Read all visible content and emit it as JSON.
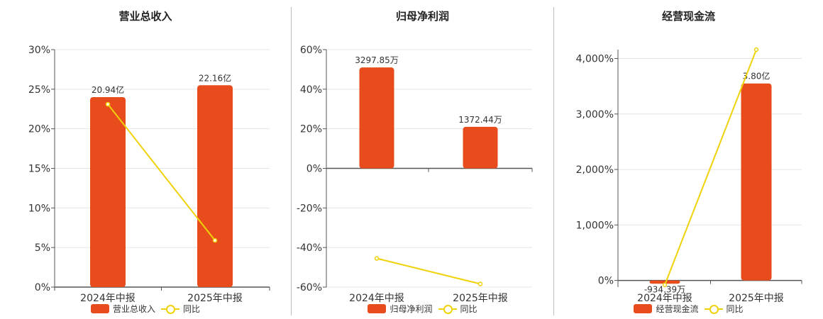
{
  "charts": [
    {
      "title": "营业总收入",
      "legend": {
        "bar": "营业总收入",
        "line": "同比"
      }
    },
    {
      "title": "归母净利润",
      "legend": {
        "bar": "归母净利润",
        "line": "同比"
      }
    },
    {
      "title": "经营现金流",
      "legend": {
        "bar": "经营现金流",
        "line": "同比"
      }
    }
  ],
  "colors": {
    "bar": "#e84c1c",
    "line": "#f0d20a",
    "grid": "#e4e4e4",
    "axis": "#555555",
    "text": "#333333"
  },
  "chart_data": [
    {
      "type": "bar",
      "title": "营业总收入",
      "categories": [
        "2024年中报",
        "2025年中报"
      ],
      "series": [
        {
          "name": "营业总收入",
          "type": "bar",
          "values": [
            24.0,
            25.5
          ],
          "labels": [
            "20.94亿",
            "22.16亿"
          ]
        },
        {
          "name": "同比",
          "type": "line",
          "values": [
            23.1,
            5.9
          ]
        }
      ],
      "yticks": [
        "0%",
        "5%",
        "10%",
        "15%",
        "20%",
        "25%",
        "30%"
      ],
      "ylim": [
        0,
        30
      ],
      "grid": true,
      "legend_position": "bottom"
    },
    {
      "type": "bar",
      "title": "归母净利润",
      "categories": [
        "2024年中报",
        "2025年中报"
      ],
      "series": [
        {
          "name": "归母净利润",
          "type": "bar",
          "values": [
            51.0,
            21.0
          ],
          "labels": [
            "3297.85万",
            "1372.44万"
          ]
        },
        {
          "name": "同比",
          "type": "line",
          "values": [
            -45.5,
            -58.4
          ]
        }
      ],
      "yticks": [
        "-60%",
        "-40%",
        "-20%",
        "0%",
        "20%",
        "40%",
        "60%"
      ],
      "ylim": [
        -60,
        60
      ],
      "grid": true,
      "legend_position": "bottom"
    },
    {
      "type": "bar",
      "title": "经营现金流",
      "categories": [
        "2024年中报",
        "2025年中报"
      ],
      "series": [
        {
          "name": "经营现金流",
          "type": "bar",
          "values": [
            -60,
            3550
          ],
          "labels": [
            "-934.39万",
            "3.80亿"
          ]
        },
        {
          "name": "同比",
          "type": "line",
          "values": [
            -80,
            4160
          ]
        }
      ],
      "yticks": [
        "0%",
        "1,000%",
        "2,000%",
        "3,000%",
        "4,000%"
      ],
      "ylim": [
        -120,
        4160
      ],
      "grid": true,
      "legend_position": "bottom"
    }
  ]
}
